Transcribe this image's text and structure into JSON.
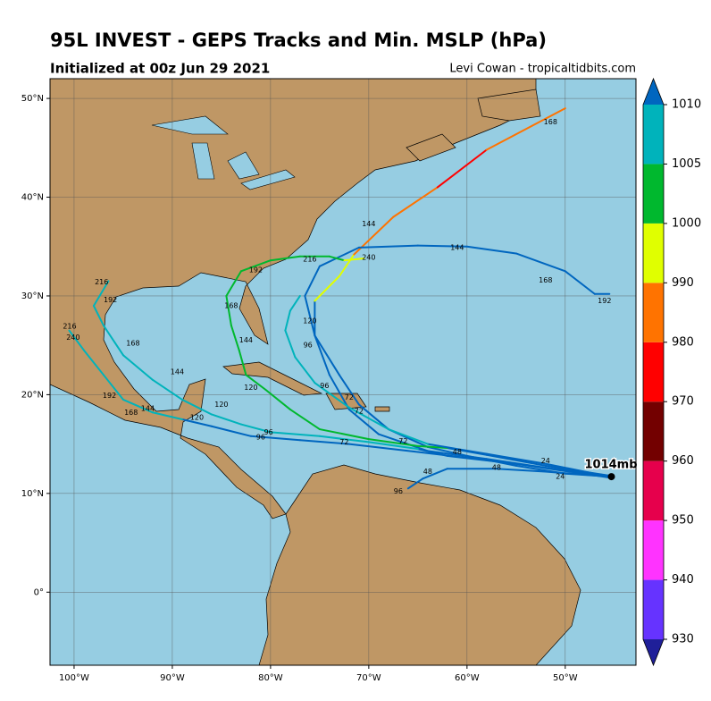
{
  "chart_data": {
    "type": "tracks",
    "title": "95L INVEST - GEPS Tracks and Min. MSLP (hPa)",
    "subtitle": "Initialized at 00z Jun 29 2021",
    "credit": "Levi Cowan - tropicaltidbits.com",
    "xlim": [
      -102.45,
      -42.8
    ],
    "ylim": [
      -7.4,
      52
    ],
    "xticks": [
      {
        "value": -100,
        "label": "100°W"
      },
      {
        "value": -90,
        "label": "90°W"
      },
      {
        "value": -80,
        "label": "80°W"
      },
      {
        "value": -70,
        "label": "70°W"
      },
      {
        "value": -60,
        "label": "60°W"
      },
      {
        "value": -50,
        "label": "50°W"
      }
    ],
    "yticks": [
      {
        "value": 0,
        "label": "0°"
      },
      {
        "value": 10,
        "label": "10°N"
      },
      {
        "value": 20,
        "label": "20°N"
      },
      {
        "value": 30,
        "label": "30°N"
      },
      {
        "value": 40,
        "label": "40°N"
      },
      {
        "value": 50,
        "label": "50°N"
      }
    ],
    "grid": true,
    "colorbar": {
      "levels": [
        930,
        940,
        950,
        960,
        970,
        980,
        990,
        1000,
        1005,
        1010
      ],
      "colors": [
        "#6633ff",
        "#ff33ff",
        "#e6004c",
        "#730000",
        "#ff0000",
        "#ff7300",
        "#e0ff00",
        "#00b82e",
        "#00b3bb"
      ],
      "under": "#1f1f99",
      "over": "#0066bf"
    },
    "current": {
      "lon": -45.3,
      "lat": 11.7,
      "label": "1014mb"
    },
    "tracks": [
      {
        "lon": [
          -45.5,
          -50,
          -55,
          -60,
          -64,
          -68,
          -71,
          -73,
          -75.5,
          -75.5,
          -73,
          -71.5,
          -67.5,
          -63,
          -58,
          -50
        ],
        "lat": [
          11.7,
          12,
          12.8,
          13.8,
          14.7,
          16.5,
          19,
          22,
          26,
          29.5,
          32,
          34.2,
          38,
          41,
          44.8,
          49
        ],
        "mslp": [
          1013,
          1013,
          1012,
          1012,
          1012,
          1011,
          1011,
          1011,
          1011,
          995,
          995,
          985,
          985,
          975,
          985,
          985
        ],
        "labels": [
          {
            "text": 24,
            "lon": -52,
            "lat": 13.3
          },
          {
            "text": 48,
            "lon": -61,
            "lat": 14.2
          },
          {
            "text": 72,
            "lon": -71,
            "lat": 18.3
          },
          {
            "text": 144,
            "lon": -70,
            "lat": 37.3
          },
          {
            "text": 168,
            "lon": -51.5,
            "lat": 47.6
          }
        ]
      },
      {
        "lon": [
          -45.5,
          -52,
          -58,
          -64,
          -69,
          -72,
          -74,
          -75.5,
          -76.5,
          -75,
          -71,
          -65,
          -60,
          -55,
          -50,
          -47,
          -45.5
        ],
        "lat": [
          11.8,
          12.6,
          13.5,
          14.3,
          16,
          18.5,
          22,
          26,
          30,
          33,
          34.9,
          35.1,
          35,
          34.3,
          32.5,
          30.2,
          30.2
        ],
        "mslp": [
          1012,
          1012,
          1012,
          1012,
          1012,
          1012,
          1012,
          1012,
          1012,
          1012,
          1012,
          1012,
          1012,
          1012,
          1012,
          1012,
          1012
        ],
        "labels": [
          {
            "text": 120,
            "lon": -76,
            "lat": 27.45
          },
          {
            "text": 144,
            "lon": -61,
            "lat": 34.9
          },
          {
            "text": 168,
            "lon": -52,
            "lat": 31.6
          },
          {
            "text": 192,
            "lon": -46,
            "lat": 29.5
          }
        ]
      },
      {
        "lon": [
          -45.5,
          -52,
          -58,
          -62,
          -65,
          -70,
          -75,
          -78,
          -80.5,
          -82.5,
          -83.2,
          -84,
          -84.5,
          -83,
          -80,
          -77,
          -74,
          -72.5,
          -70.5
        ],
        "lat": [
          11.8,
          12.8,
          13.9,
          14.6,
          14.8,
          15.5,
          16.5,
          18.5,
          20.5,
          22,
          24.5,
          27,
          30,
          32.5,
          33.6,
          34,
          34,
          33.6,
          33.8
        ],
        "mslp": [
          1012,
          1012,
          1012,
          1003,
          1003,
          1003,
          1003,
          1003,
          1003,
          1003,
          1003,
          1003,
          1003,
          1003,
          1003,
          1003,
          1003,
          995,
          995
        ],
        "labels": [
          {
            "text": 72,
            "lon": -66.5,
            "lat": 15.3
          },
          {
            "text": 120,
            "lon": -82,
            "lat": 20.7
          },
          {
            "text": 144,
            "lon": -82.5,
            "lat": 25.5
          },
          {
            "text": 168,
            "lon": -84,
            "lat": 29
          },
          {
            "text": 192,
            "lon": -81.5,
            "lat": 32.6
          },
          {
            "text": 216,
            "lon": -76,
            "lat": 33.7
          },
          {
            "text": 240,
            "lon": -70,
            "lat": 33.9
          }
        ]
      },
      {
        "lon": [
          -45.5,
          -55,
          -62,
          -65,
          -70,
          -75,
          -80,
          -83,
          -86,
          -89,
          -92,
          -95,
          -97,
          -98,
          -96.5
        ],
        "lat": [
          11.7,
          13,
          13.8,
          14.5,
          15.2,
          15.8,
          16.2,
          17,
          18,
          19.5,
          21.5,
          24,
          27,
          29,
          31.5
        ],
        "mslp": [
          1012,
          1012,
          1012,
          1007,
          1007,
          1007,
          1007,
          1007,
          1007,
          1007,
          1007,
          1007,
          1007,
          1007,
          1007
        ],
        "labels": [
          {
            "text": 96,
            "lon": -80.2,
            "lat": 16.2
          },
          {
            "text": 120,
            "lon": -85,
            "lat": 19
          },
          {
            "text": 144,
            "lon": -89.5,
            "lat": 22.3
          },
          {
            "text": 168,
            "lon": -94,
            "lat": 25.2
          },
          {
            "text": 192,
            "lon": -96.3,
            "lat": 29.6
          },
          {
            "text": 216,
            "lon": -97.2,
            "lat": 31.4
          }
        ]
      },
      {
        "lon": [
          -45.5,
          -55,
          -65,
          -72,
          -77,
          -82,
          -86,
          -89,
          -92,
          -95,
          -97,
          -99,
          -100.5
        ],
        "lat": [
          11.6,
          13,
          14.2,
          15,
          15.4,
          15.8,
          16.8,
          17.5,
          18.2,
          19.5,
          22,
          24.5,
          26.5
        ],
        "mslp": [
          1012,
          1012,
          1012,
          1012,
          1012,
          1012,
          1012,
          1007,
          1007,
          1007,
          1007,
          1007,
          1007
        ],
        "labels": [
          {
            "text": 72,
            "lon": -72.5,
            "lat": 15.2
          },
          {
            "text": 96,
            "lon": -81,
            "lat": 15.7
          },
          {
            "text": 120,
            "lon": -87.5,
            "lat": 17.7
          },
          {
            "text": 144,
            "lon": -92.5,
            "lat": 18.6
          },
          {
            "text": 168,
            "lon": -94.2,
            "lat": 18.2
          },
          {
            "text": 192,
            "lon": -96.4,
            "lat": 19.9
          },
          {
            "text": 240,
            "lon": -100.1,
            "lat": 25.8
          },
          {
            "text": 216,
            "lon": -100.45,
            "lat": 26.9
          }
        ]
      },
      {
        "lon": [
          -45.5,
          -52,
          -58,
          -64,
          -68,
          -72,
          -75.5,
          -77.5,
          -78.5,
          -78,
          -77
        ],
        "lat": [
          11.7,
          13,
          14,
          15,
          16.5,
          18.7,
          21.2,
          23.8,
          26.5,
          28.5,
          30
        ],
        "mslp": [
          1012,
          1012,
          1012,
          1007,
          1007,
          1007,
          1007,
          1007,
          1007,
          1007,
          1007
        ],
        "labels": [
          {
            "text": 72,
            "lon": -72,
            "lat": 19.7
          },
          {
            "text": 96,
            "lon": -74.5,
            "lat": 20.9
          },
          {
            "text": 96,
            "lon": -76.2,
            "lat": 25
          }
        ]
      },
      {
        "lon": [
          -45.5,
          -52,
          -57,
          -62,
          -64.5,
          -66
        ],
        "lat": [
          11.7,
          12.2,
          12.5,
          12.5,
          11.5,
          10.5
        ],
        "mslp": [
          1012,
          1012,
          1012,
          1012,
          1012,
          1012
        ],
        "labels": [
          {
            "text": 24,
            "lon": -50.5,
            "lat": 11.7
          },
          {
            "text": 48,
            "lon": -57,
            "lat": 12.6
          },
          {
            "text": 48,
            "lon": -64,
            "lat": 12.2
          },
          {
            "text": 96,
            "lon": -67,
            "lat": 10.2
          }
        ]
      }
    ]
  }
}
